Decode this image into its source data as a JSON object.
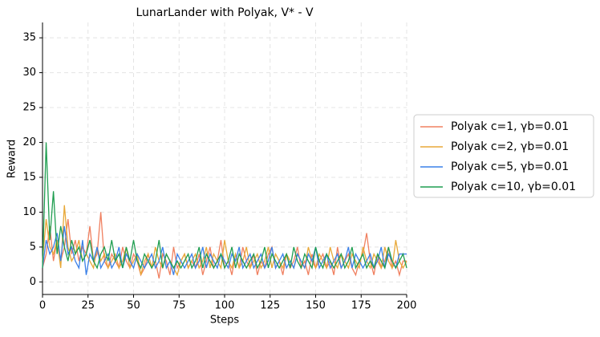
{
  "chart_data": {
    "type": "line",
    "title": "LunarLander with Polyak, V* - V",
    "x_label": "Steps",
    "y_label": "Reward",
    "x": [
      0,
      2,
      4,
      6,
      8,
      10,
      12,
      14,
      16,
      18,
      20,
      22,
      24,
      26,
      28,
      30,
      32,
      34,
      36,
      38,
      40,
      42,
      44,
      46,
      48,
      50,
      52,
      54,
      56,
      58,
      60,
      62,
      64,
      66,
      68,
      70,
      72,
      74,
      76,
      78,
      80,
      82,
      84,
      86,
      88,
      90,
      92,
      94,
      96,
      98,
      100,
      102,
      104,
      106,
      108,
      110,
      112,
      114,
      116,
      118,
      120,
      122,
      124,
      126,
      128,
      130,
      132,
      134,
      136,
      138,
      140,
      142,
      144,
      146,
      148,
      150,
      152,
      154,
      156,
      158,
      160,
      162,
      164,
      166,
      168,
      170,
      172,
      174,
      176,
      178,
      180,
      182,
      184,
      186,
      188,
      190,
      192,
      194,
      196,
      198,
      200
    ],
    "series": [
      {
        "name": "Polyak c=1, γb=0.01",
        "color": "#f08060",
        "values": [
          2,
          4,
          8,
          3,
          6,
          3,
          5,
          9,
          4,
          6,
          3,
          5,
          4,
          8,
          3,
          4,
          10,
          3,
          2,
          4,
          3,
          2,
          5,
          3,
          2,
          4,
          3,
          1,
          2,
          4,
          2,
          3,
          0.5,
          4,
          3,
          1,
          5,
          2,
          3,
          4,
          2,
          3,
          2,
          4,
          1,
          3,
          5,
          2,
          3,
          6,
          2,
          3,
          1,
          4,
          2,
          5,
          3,
          2,
          4,
          1,
          3,
          2,
          4,
          5,
          2,
          3,
          1,
          4,
          2,
          3,
          5,
          2,
          3,
          1,
          4,
          2,
          3,
          4,
          2,
          3,
          1,
          5,
          2,
          3,
          4,
          2,
          1,
          3,
          4,
          7,
          3,
          1,
          4,
          2,
          3,
          5,
          2,
          3,
          1,
          3,
          3
        ]
      },
      {
        "name": "Polyak c=2, γb=0.01",
        "color": "#e8a838",
        "values": [
          3,
          9,
          5,
          4,
          6,
          2,
          11,
          5,
          3,
          4,
          6,
          3,
          4,
          3,
          2,
          5,
          3,
          4,
          2,
          3,
          4,
          2,
          3,
          5,
          2,
          3,
          4,
          1,
          3,
          4,
          2,
          5,
          3,
          2,
          4,
          3,
          2,
          1,
          3,
          4,
          2,
          3,
          4,
          2,
          3,
          5,
          2,
          4,
          3,
          2,
          6,
          3,
          2,
          4,
          2,
          3,
          5,
          2,
          3,
          4,
          2,
          3,
          5,
          2,
          4,
          3,
          2,
          4,
          3,
          2,
          4,
          3,
          2,
          5,
          3,
          2,
          4,
          3,
          2,
          5,
          3,
          2,
          4,
          3,
          2,
          4,
          3,
          2,
          5,
          3,
          2,
          4,
          3,
          2,
          5,
          3,
          2,
          6,
          3,
          2,
          3
        ]
      },
      {
        "name": "Polyak c=5, γb=0.01",
        "color": "#3a80e8",
        "values": [
          2,
          6,
          4,
          5,
          7,
          3,
          8,
          4,
          5,
          3,
          2,
          6,
          1,
          4,
          3,
          5,
          2,
          3,
          4,
          2,
          3,
          5,
          2,
          4,
          3,
          2,
          4,
          3,
          2,
          3,
          4,
          2,
          3,
          5,
          2,
          3,
          1,
          4,
          3,
          2,
          3,
          4,
          2,
          3,
          5,
          2,
          4,
          3,
          2,
          4,
          3,
          2,
          4,
          3,
          5,
          2,
          3,
          4,
          2,
          3,
          4,
          2,
          3,
          5,
          2,
          3,
          4,
          2,
          3,
          2,
          4,
          3,
          2,
          4,
          3,
          5,
          2,
          3,
          4,
          2,
          3,
          4,
          2,
          3,
          5,
          2,
          4,
          3,
          2,
          3,
          4,
          2,
          3,
          5,
          2,
          4,
          3,
          2,
          4,
          4,
          4
        ]
      },
      {
        "name": "Polyak c=10, γb=0.01",
        "color": "#1f9e50",
        "values": [
          2,
          20,
          6,
          13,
          4,
          8,
          5,
          3,
          6,
          4,
          5,
          3,
          4,
          6,
          3,
          2,
          4,
          5,
          3,
          6,
          3,
          4,
          2,
          5,
          3,
          6,
          3,
          2,
          4,
          3,
          2,
          3,
          6,
          2,
          4,
          3,
          2,
          3,
          2,
          3,
          4,
          2,
          3,
          5,
          2,
          4,
          3,
          2,
          3,
          4,
          2,
          3,
          5,
          2,
          4,
          3,
          2,
          3,
          4,
          2,
          3,
          5,
          2,
          4,
          3,
          2,
          3,
          4,
          2,
          5,
          3,
          2,
          4,
          3,
          2,
          5,
          3,
          2,
          4,
          3,
          2,
          3,
          4,
          2,
          3,
          5,
          2,
          3,
          4,
          2,
          3,
          2,
          4,
          3,
          2,
          5,
          3,
          2,
          3,
          4,
          2
        ]
      }
    ],
    "xlim": [
      0,
      200
    ],
    "xticks": [
      0,
      25,
      50,
      75,
      100,
      125,
      150,
      175,
      200
    ],
    "ylim": [
      -1.8,
      37.2
    ],
    "yticks": [
      0,
      5,
      10,
      15,
      20,
      25,
      30,
      35
    ],
    "grid": true,
    "legend": "right"
  }
}
